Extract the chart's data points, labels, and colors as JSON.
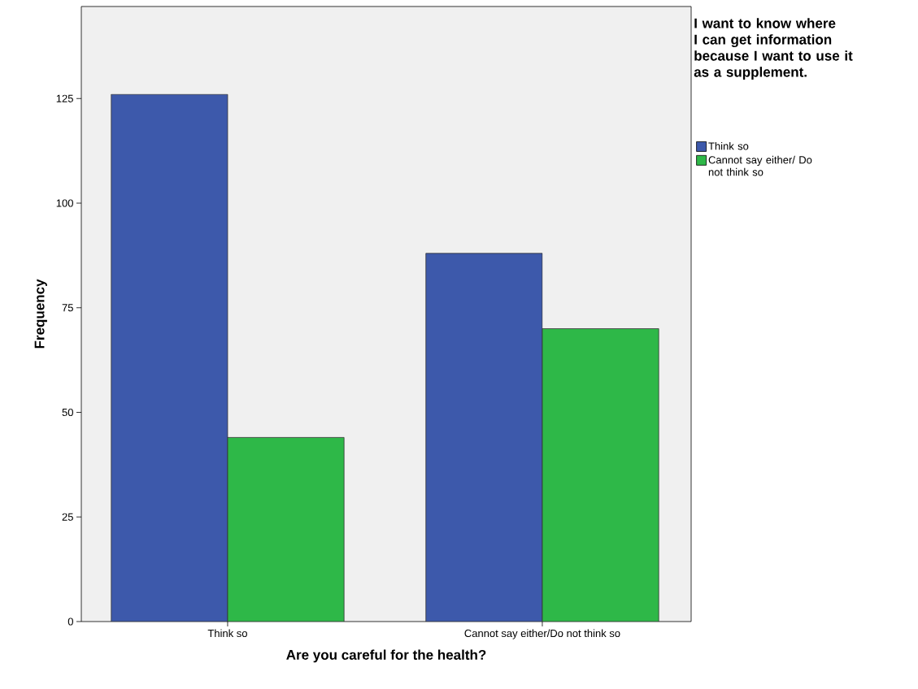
{
  "chart_data": {
    "type": "bar",
    "xlabel": "Are you careful for the health?",
    "ylabel": "Frequency",
    "legend_title": "I want to know where I can get information because I want to use it as a supplement.",
    "categories": [
      "Think so",
      "Cannot say either/Do not think so"
    ],
    "series": [
      {
        "name": "Think so",
        "color": "#3d59ab",
        "values": [
          126,
          88
        ]
      },
      {
        "name": "Cannot say either/ Do not think so",
        "color": "#2eb848",
        "values": [
          44,
          70
        ]
      }
    ],
    "ylim": [
      0,
      147
    ],
    "yticks": [
      0,
      25,
      50,
      75,
      100,
      125
    ],
    "grid": false,
    "legend": "right"
  }
}
